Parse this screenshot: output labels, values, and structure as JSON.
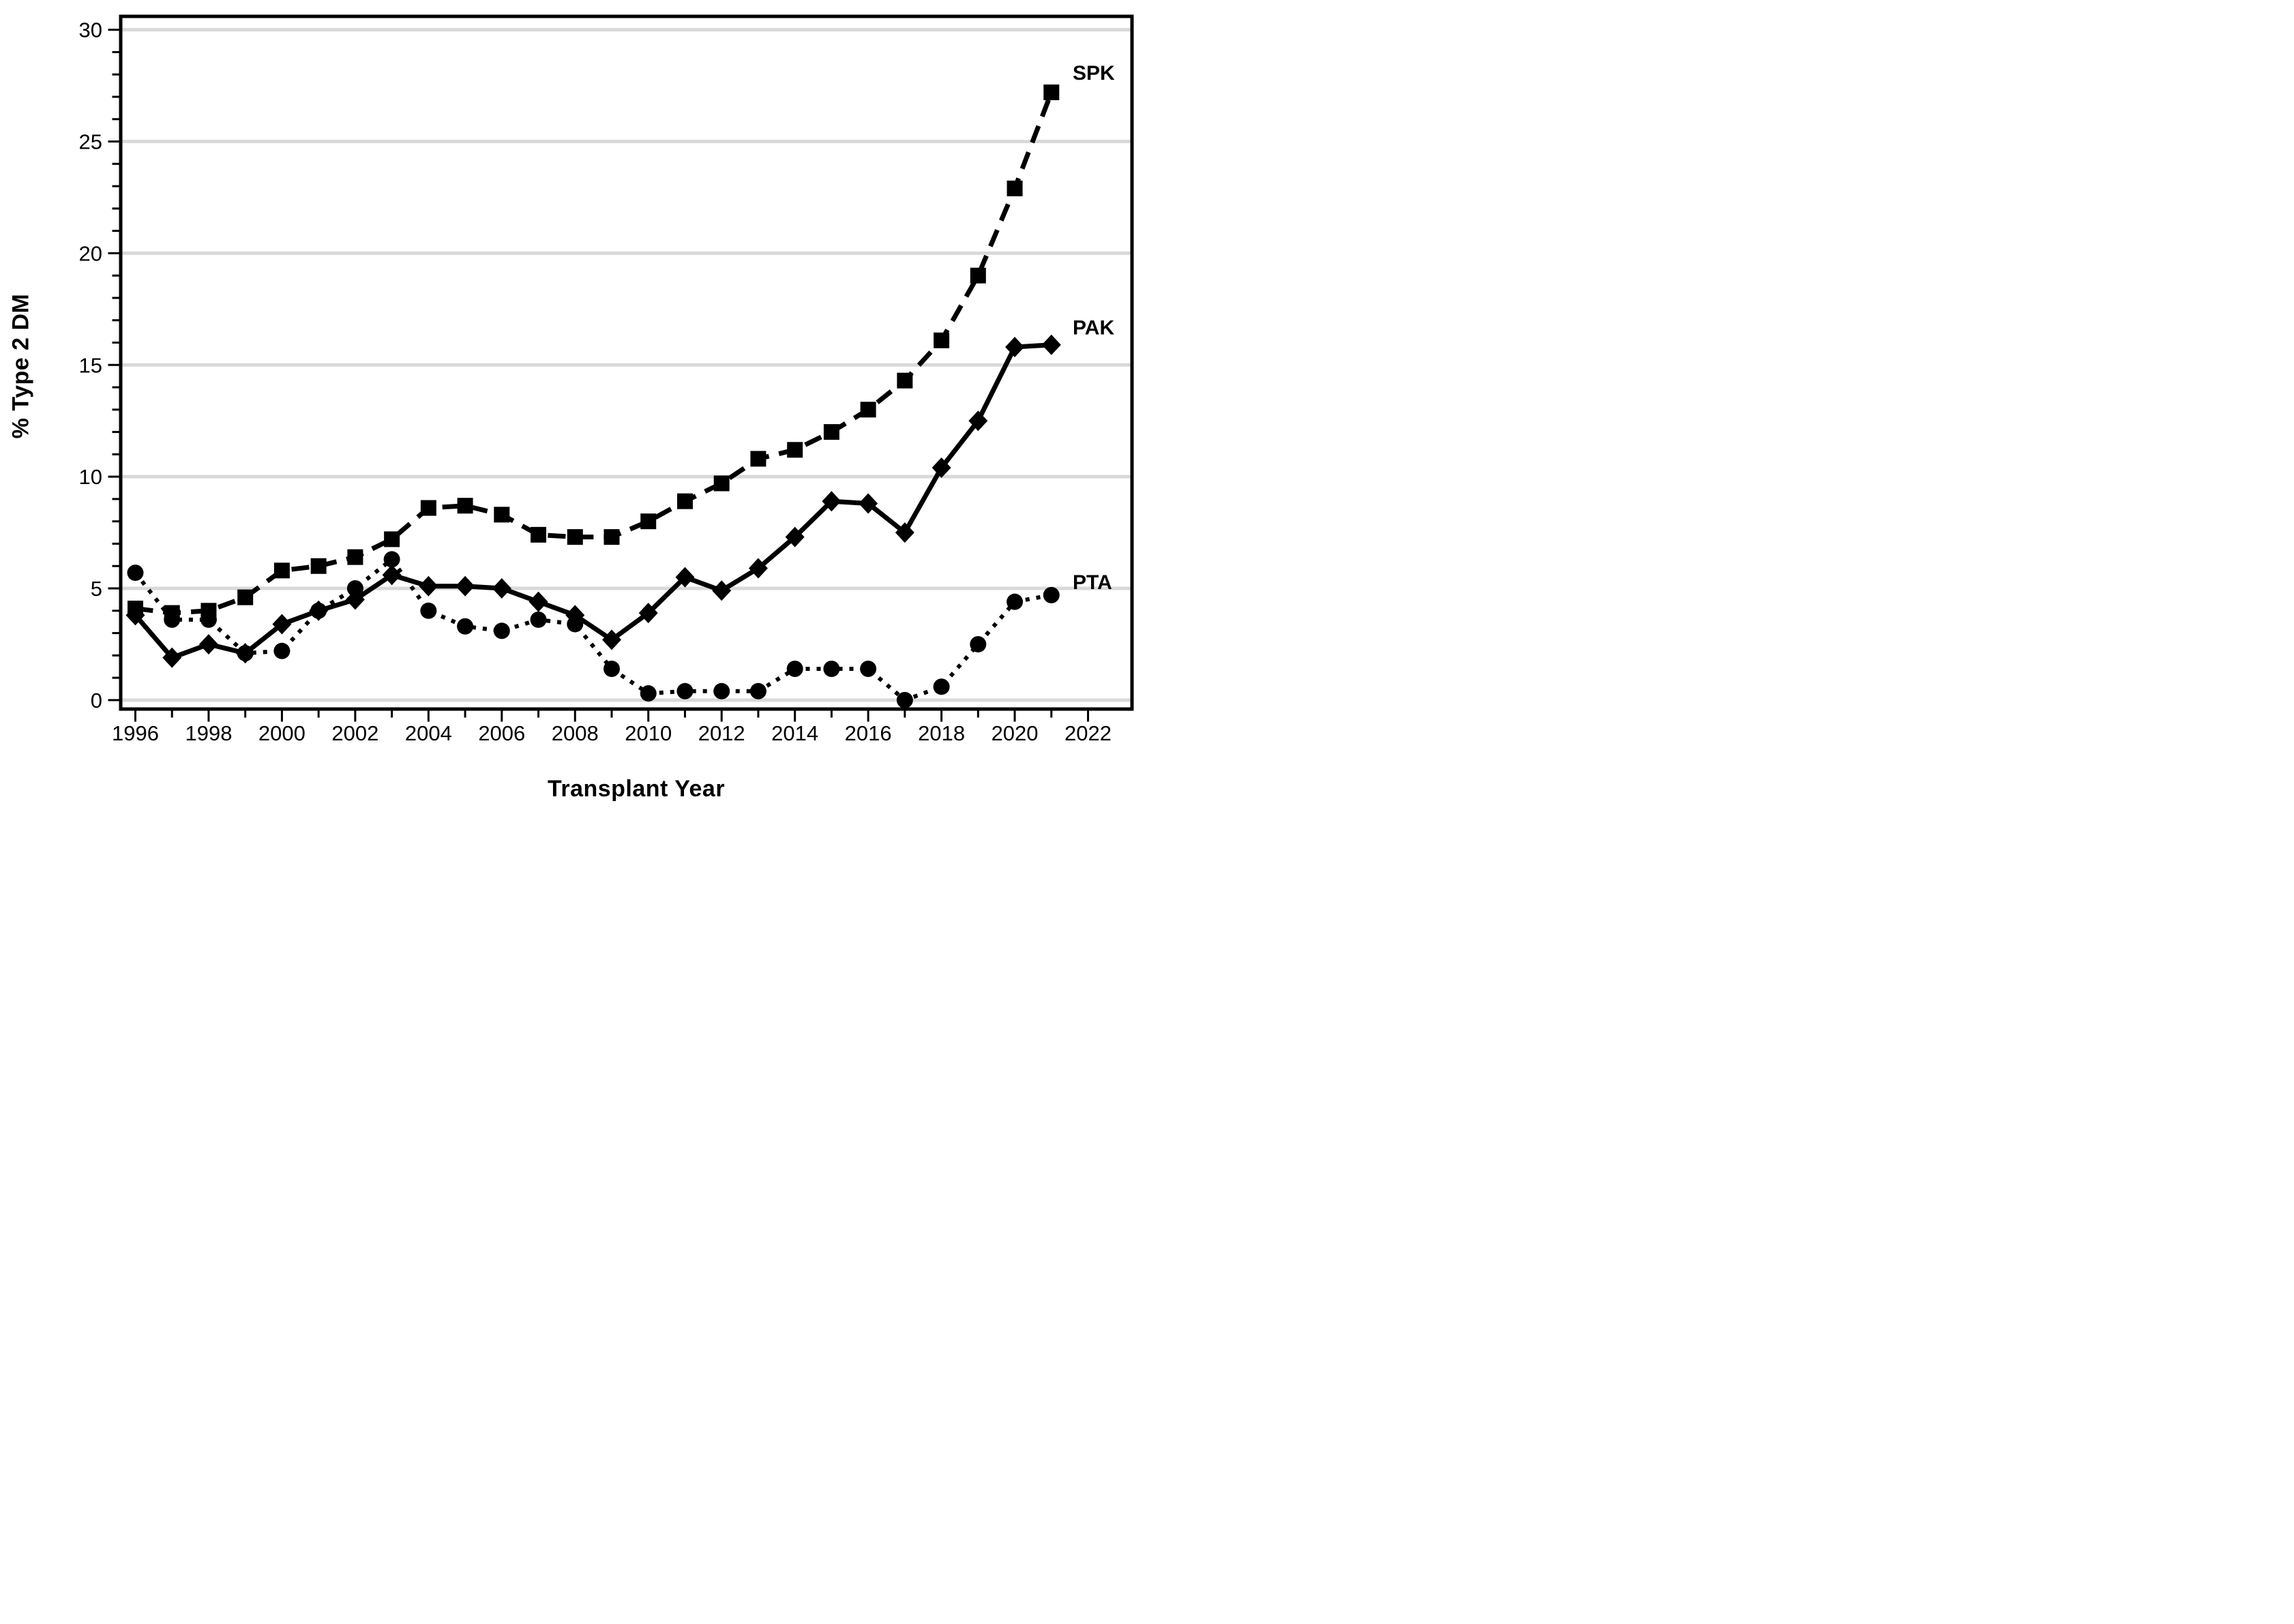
{
  "chart_data": {
    "type": "line",
    "title": "",
    "xlabel": "Transplant Year",
    "ylabel": "% Type 2 DM",
    "x": [
      1996,
      1997,
      1998,
      1999,
      2000,
      2001,
      2002,
      2003,
      2004,
      2005,
      2006,
      2007,
      2008,
      2009,
      2010,
      2011,
      2012,
      2013,
      2014,
      2015,
      2016,
      2017,
      2018,
      2019,
      2020,
      2021
    ],
    "series": [
      {
        "name": "SPK",
        "line_style": "dashed",
        "marker": "square",
        "label_value": 28.1,
        "values": [
          4.1,
          3.9,
          4.0,
          4.6,
          5.8,
          6.0,
          6.4,
          7.2,
          8.6,
          8.7,
          8.3,
          7.4,
          7.3,
          7.3,
          8.0,
          8.9,
          9.7,
          10.8,
          11.2,
          12.0,
          13.0,
          14.3,
          16.1,
          19.0,
          22.9,
          27.2
        ]
      },
      {
        "name": "PAK",
        "line_style": "solid",
        "marker": "diamond",
        "label_value": 16.7,
        "values": [
          3.8,
          1.9,
          2.5,
          2.1,
          3.4,
          4.0,
          4.5,
          5.6,
          5.1,
          5.1,
          5.0,
          4.4,
          3.8,
          2.7,
          3.9,
          5.5,
          4.9,
          5.9,
          7.3,
          8.9,
          8.8,
          7.5,
          10.4,
          12.5,
          15.8,
          15.9
        ]
      },
      {
        "name": "PTA",
        "line_style": "dotted",
        "marker": "circle",
        "label_value": 5.3,
        "values": [
          5.7,
          3.6,
          3.6,
          2.1,
          2.2,
          4.0,
          5.0,
          6.3,
          4.0,
          3.3,
          3.1,
          3.6,
          3.4,
          1.4,
          0.3,
          0.4,
          0.4,
          0.4,
          1.4,
          1.4,
          1.4,
          0.0,
          0.6,
          2.5,
          4.4,
          4.7
        ]
      }
    ],
    "xlim": [
      1995.6,
      2023.2
    ],
    "ylim": [
      -0.4,
      30.6
    ],
    "yticks": [
      0,
      5,
      10,
      15,
      20,
      25,
      30
    ],
    "y_minor_step": 1,
    "xticks": [
      1996,
      1998,
      2000,
      2002,
      2004,
      2006,
      2008,
      2010,
      2012,
      2014,
      2016,
      2018,
      2020,
      2022
    ],
    "x_minor_step": 1,
    "grid": "horizontal",
    "legend_position": "right-of-last-point",
    "colors": {
      "series": "#000000",
      "grid": "#d9d9d9",
      "background": "#ffffff",
      "text": "#000000"
    }
  }
}
